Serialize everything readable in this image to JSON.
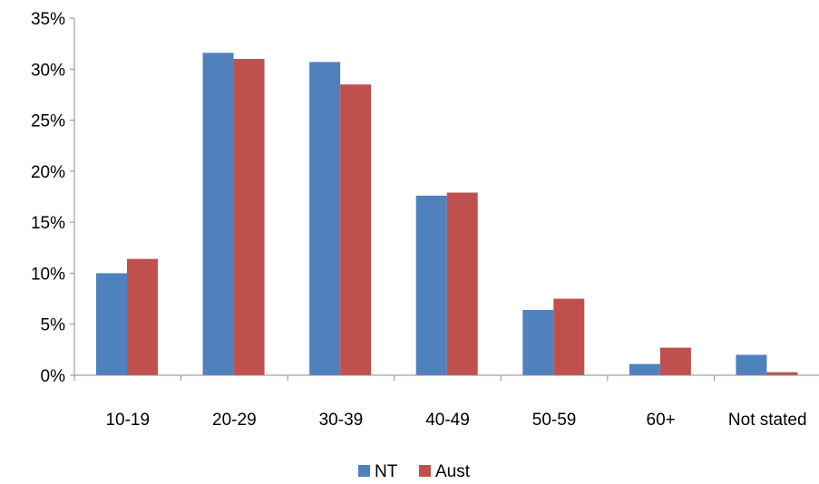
{
  "chart_data": {
    "type": "bar",
    "categories": [
      "10-19",
      "20-29",
      "30-39",
      "40-49",
      "50-59",
      "60+",
      "Not stated"
    ],
    "series": [
      {
        "name": "NT",
        "color": "#4F81BD",
        "values": [
          10.0,
          31.6,
          30.7,
          17.6,
          6.4,
          1.1,
          2.0
        ]
      },
      {
        "name": "Aust",
        "color": "#C0504D",
        "values": [
          11.4,
          31.0,
          28.5,
          17.9,
          7.5,
          2.7,
          0.3
        ]
      }
    ],
    "y_ticks": [
      "0%",
      "5%",
      "10%",
      "15%",
      "20%",
      "25%",
      "30%",
      "35%"
    ],
    "ylim": [
      0,
      35
    ],
    "grid": false,
    "legend_position": "bottom"
  }
}
